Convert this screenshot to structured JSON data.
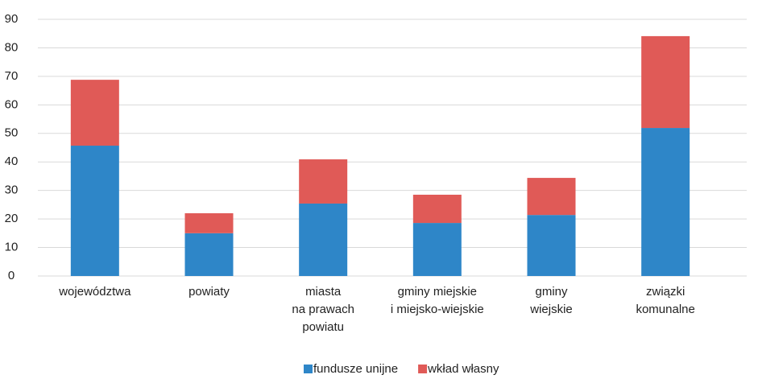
{
  "chart_data": {
    "type": "stacked-bar",
    "categories": [
      "województwa",
      "powiaty",
      "miasta\nna prawach\npowiatu",
      "gminy miejskie\ni miejsko-wiejskie",
      "gminy\nwiejskie",
      "związki\nkomunalne"
    ],
    "series": [
      {
        "name": "fundusze unijne",
        "color": "#2e86c8",
        "values": [
          45.7,
          15.0,
          25.4,
          18.6,
          21.4,
          51.9
        ]
      },
      {
        "name": "wkład własny",
        "color": "#e05a57",
        "values": [
          23.1,
          7.0,
          15.5,
          9.9,
          13.0,
          32.2
        ]
      }
    ],
    "ylim": [
      0,
      90
    ],
    "yticks": [
      0,
      10,
      20,
      30,
      40,
      50,
      60,
      70,
      80,
      90
    ],
    "grid": true,
    "legend": "bottom"
  }
}
